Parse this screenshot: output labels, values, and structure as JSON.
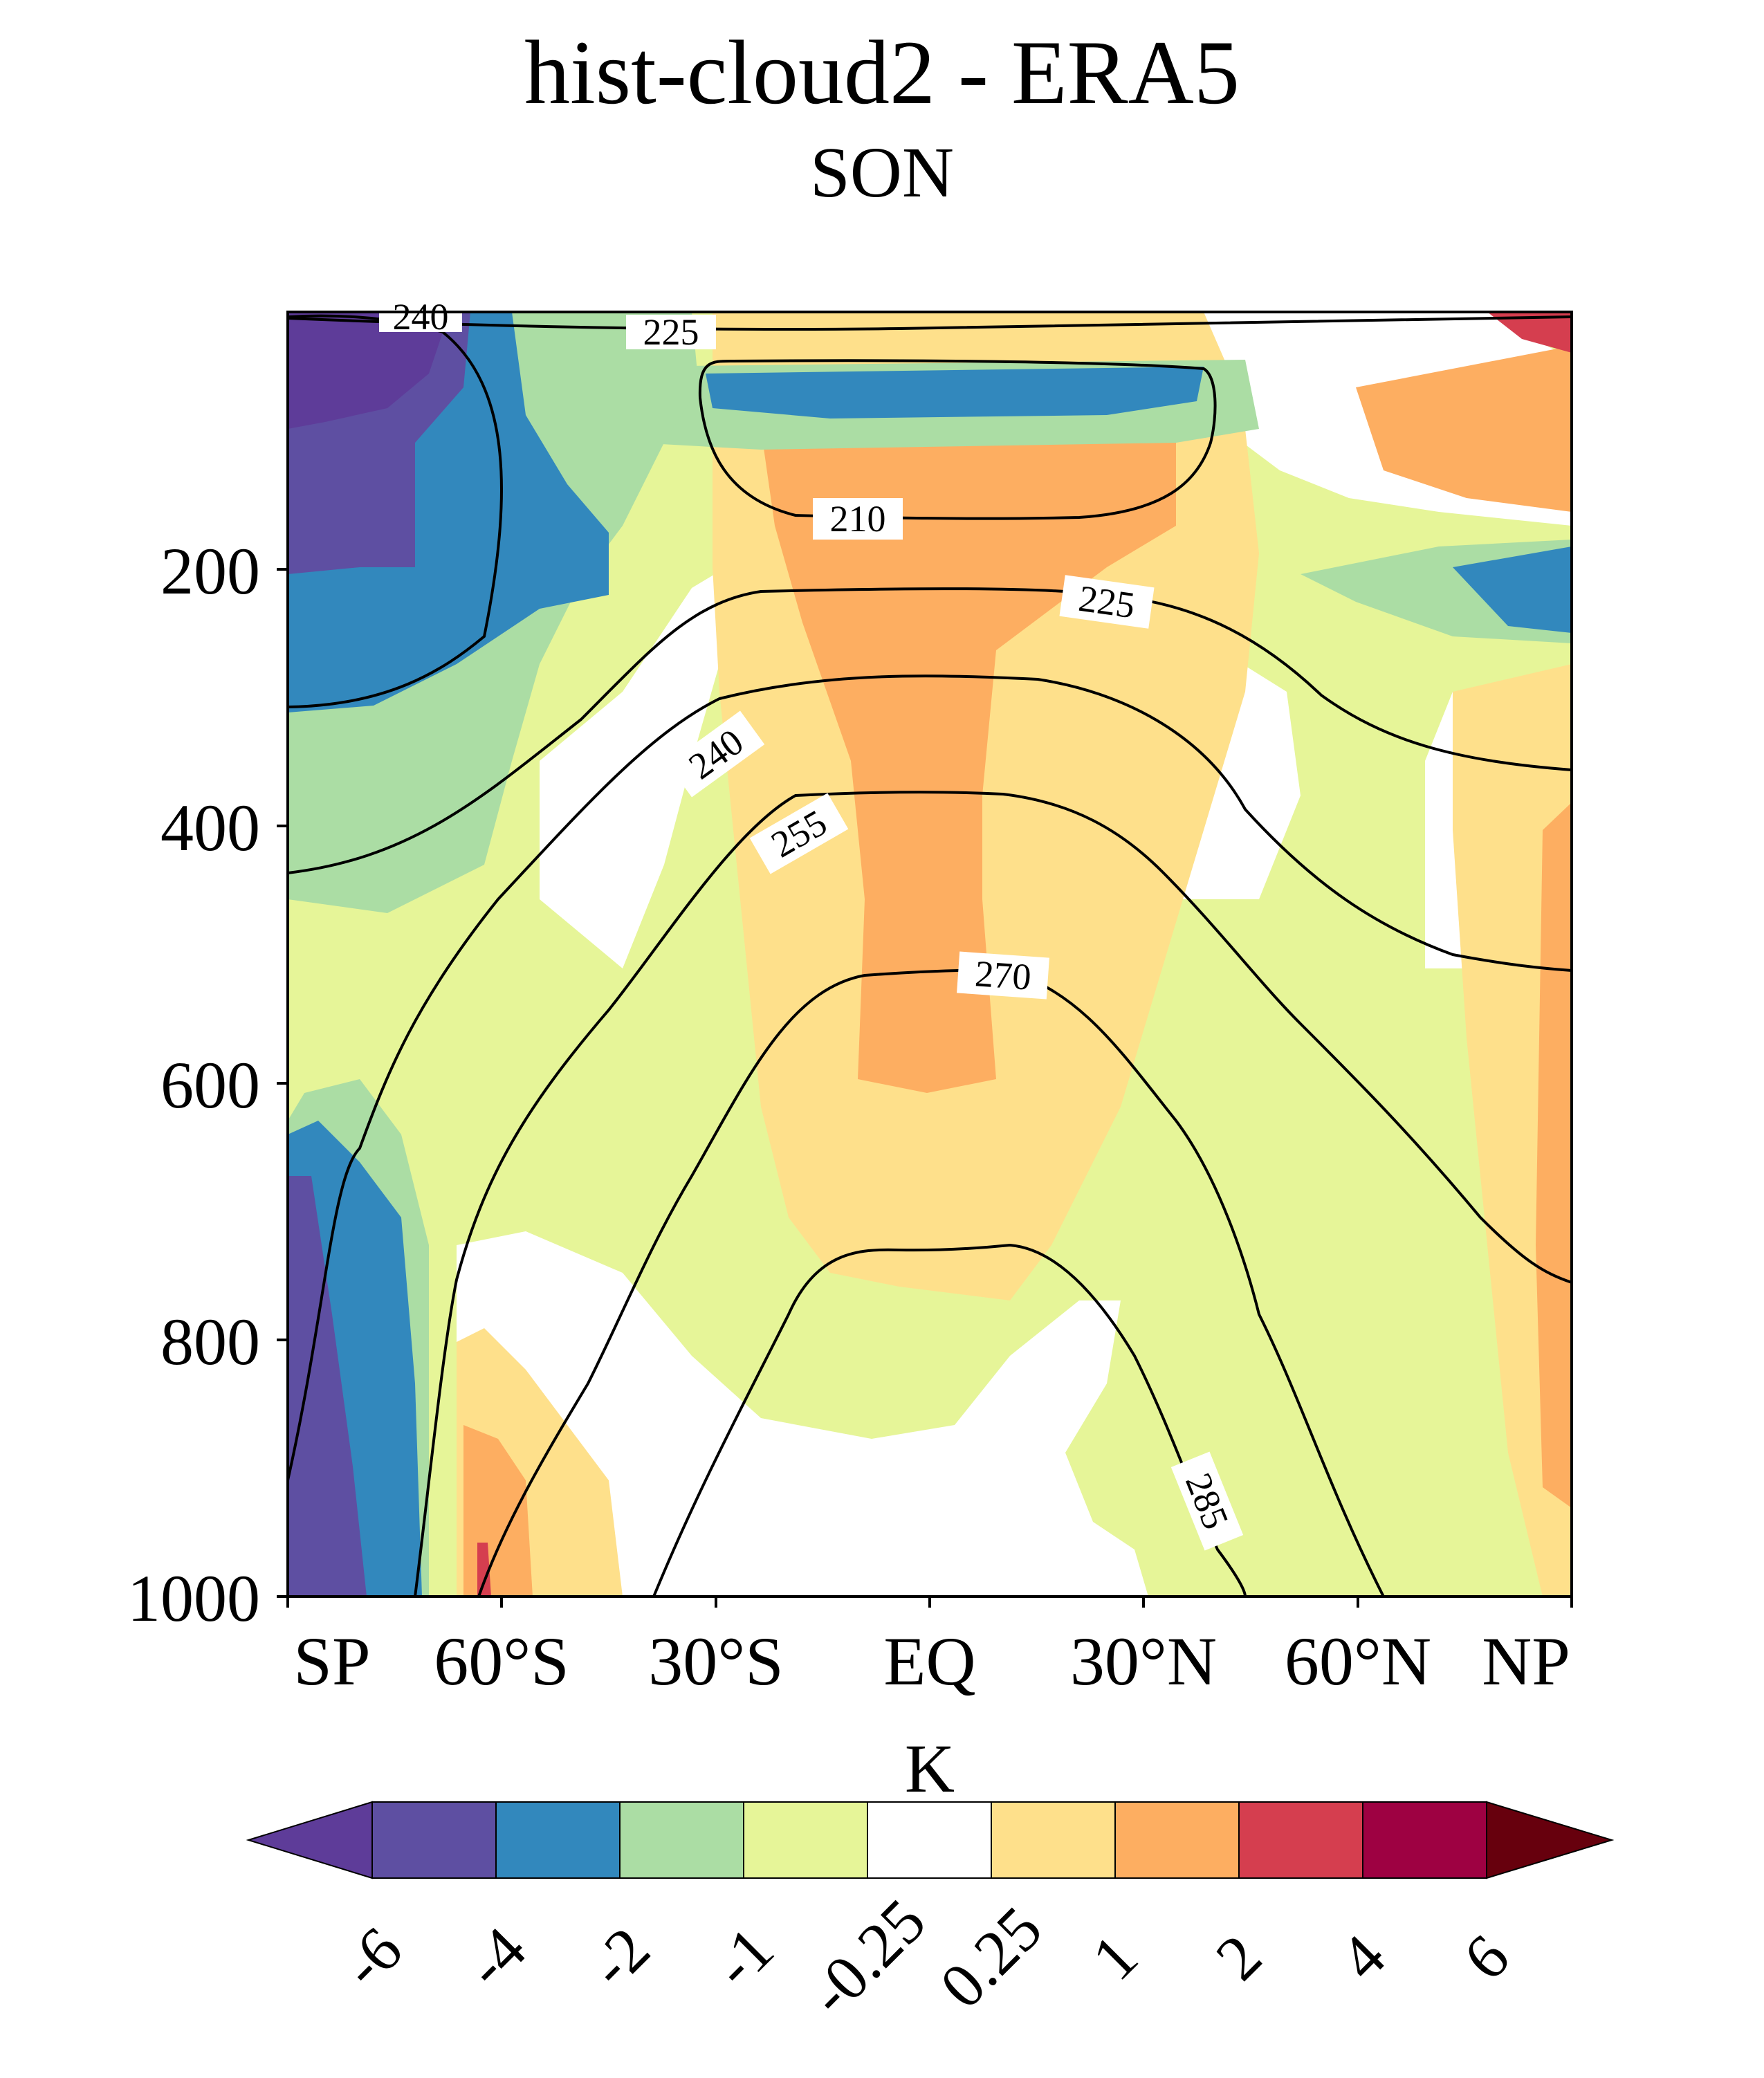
{
  "chart_data": {
    "type": "contour",
    "title": "hist-cloud2 - ERA5",
    "subtitle": "SON",
    "x_ticks": [
      "SP",
      "60°S",
      "30°S",
      "EQ",
      "30°N",
      "60°N",
      "NP"
    ],
    "x_tick_values": [
      -90,
      -60,
      -30,
      0,
      30,
      60,
      90
    ],
    "y_ticks": [
      "200",
      "400",
      "600",
      "800",
      "1000"
    ],
    "y_tick_values": [
      200,
      400,
      600,
      800,
      1000
    ],
    "xlim": [
      -90,
      90
    ],
    "ylim": [
      1000,
      2
    ],
    "y_inverted": true,
    "colorbar": {
      "label": "K",
      "ticks": [
        "-6",
        "-4",
        "-2",
        "-1",
        "-0.25",
        "0.25",
        "1",
        "2",
        "4",
        "6"
      ],
      "colors": [
        "#5e3c99",
        "#5e4fa2",
        "#3288bd",
        "#abdda4",
        "#e6f598",
        "#ffffff",
        "#fee08b",
        "#fdae61",
        "#d53e4f",
        "#9e0142",
        "#67000d"
      ],
      "extend": "both"
    },
    "contour_labels": [
      "240",
      "225",
      "210",
      "225",
      "240",
      "255",
      "270",
      "285"
    ],
    "contour_levels": [
      210,
      225,
      240,
      255,
      270,
      285
    ]
  }
}
